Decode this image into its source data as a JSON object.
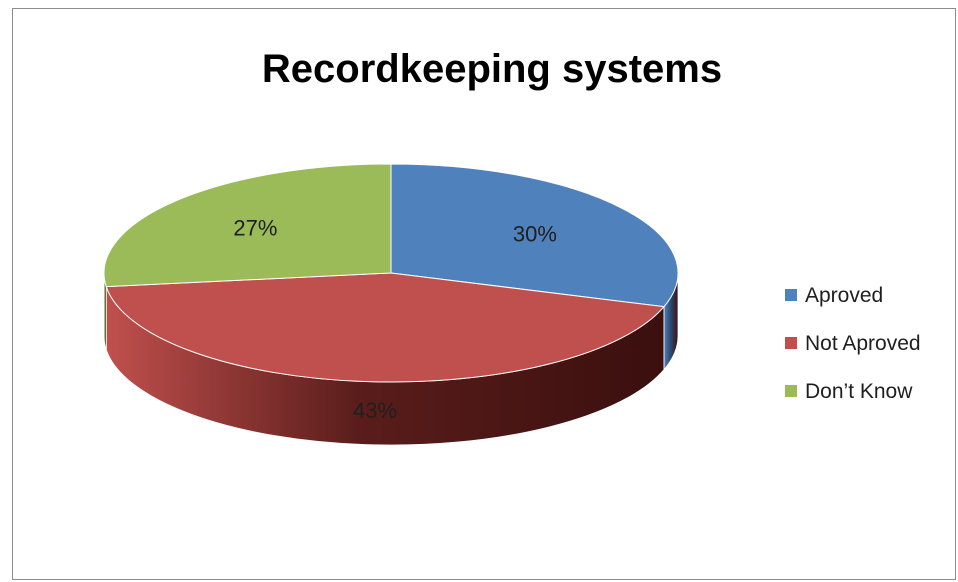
{
  "chart_data": {
    "type": "pie",
    "title": "Recordkeeping systems",
    "categories": [
      "Aproved",
      "Not Aproved",
      "Don’t Know"
    ],
    "values": [
      30,
      43,
      27
    ],
    "data_labels": [
      "30%",
      "43%",
      "27%"
    ],
    "unit": "%",
    "style": "3d",
    "legend_position": "right",
    "colors": [
      "#4f81bd",
      "#c0504d",
      "#9bbb59"
    ],
    "side_colors": [
      "#2c4d75",
      "#5a1d1b",
      "#5c7a2e"
    ]
  }
}
